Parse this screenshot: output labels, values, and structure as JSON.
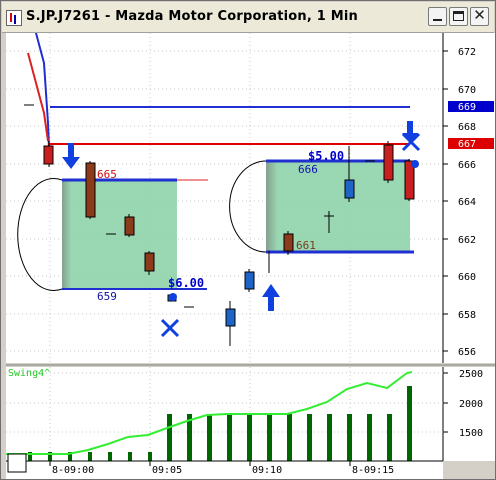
{
  "window": {
    "title": "S.JP.J7261 - Mazda Motor Corporation, 1 Min"
  },
  "price_axis": {
    "ticks": [
      "672",
      "670",
      "668",
      "666",
      "664",
      "662",
      "660",
      "658",
      "656"
    ],
    "markers": [
      {
        "label": "669",
        "color": "#0000cc"
      },
      {
        "label": "667",
        "color": "#dd0000"
      }
    ]
  },
  "annotations": {
    "box1_top_label": "665",
    "box1_bottom_label": "659",
    "box1_price_tag": "$6.00",
    "box2_top_label": "666",
    "box2_bottom_label": "661",
    "box2_price_tag": "$5.00"
  },
  "indicator": {
    "name": "Swing4^",
    "ticks": [
      "2500",
      "2000",
      "1500"
    ],
    "line_color": "#33ee33",
    "bar_color": "#006600"
  },
  "time_axis": {
    "labels": [
      "8-09:00",
      "09:05",
      "09:10",
      "8-09:15"
    ]
  },
  "colors": {
    "up_candle": "#1e64c8",
    "down_candle": "#c82020",
    "box_fill": "#7dcfa0",
    "box_line": "#1f2fd0",
    "resistance": "#dd0000",
    "arrow": "#1040e0"
  }
}
